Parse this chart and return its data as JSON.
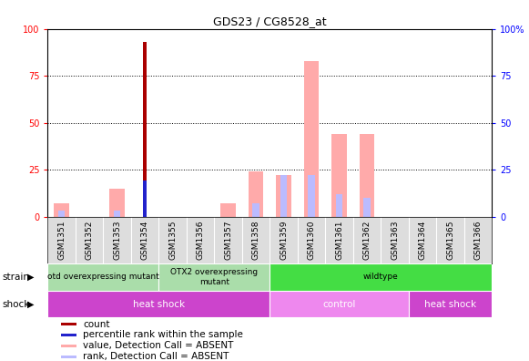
{
  "title": "GDS23 / CG8528_at",
  "samples": [
    "GSM1351",
    "GSM1352",
    "GSM1353",
    "GSM1354",
    "GSM1355",
    "GSM1356",
    "GSM1357",
    "GSM1358",
    "GSM1359",
    "GSM1360",
    "GSM1361",
    "GSM1362",
    "GSM1363",
    "GSM1364",
    "GSM1365",
    "GSM1366"
  ],
  "count_values": [
    0,
    0,
    0,
    93,
    0,
    0,
    0,
    0,
    0,
    0,
    0,
    0,
    0,
    0,
    0,
    0
  ],
  "percentile_values": [
    0,
    0,
    0,
    19,
    0,
    0,
    0,
    0,
    0,
    0,
    0,
    0,
    0,
    0,
    0,
    0
  ],
  "absent_value_vals": [
    7,
    0,
    15,
    0,
    0,
    0,
    7,
    24,
    22,
    83,
    44,
    44,
    0,
    0,
    0,
    0
  ],
  "absent_rank_vals": [
    3,
    0,
    3,
    0,
    0,
    0,
    0,
    7,
    22,
    22,
    12,
    10,
    0,
    0,
    0,
    0
  ],
  "strain_data": [
    {
      "label": "otd overexpressing mutant",
      "start": 0,
      "end": 4,
      "color": "#aaddaa"
    },
    {
      "label": "OTX2 overexpressing\nmutant",
      "start": 4,
      "end": 8,
      "color": "#aaddaa"
    },
    {
      "label": "wildtype",
      "start": 8,
      "end": 16,
      "color": "#44dd44"
    }
  ],
  "shock_data": [
    {
      "label": "heat shock",
      "start": 0,
      "end": 8,
      "color": "#cc44cc"
    },
    {
      "label": "control",
      "start": 8,
      "end": 13,
      "color": "#ee88ee"
    },
    {
      "label": "heat shock",
      "start": 13,
      "end": 16,
      "color": "#cc44cc"
    }
  ],
  "ylim": [
    0,
    100
  ],
  "count_color": "#aa0000",
  "percentile_color": "#2222cc",
  "absent_value_color": "#ffaaaa",
  "absent_rank_color": "#bbbbff",
  "legend_items": [
    {
      "label": "count",
      "color": "#aa0000"
    },
    {
      "label": "percentile rank within the sample",
      "color": "#2222cc"
    },
    {
      "label": "value, Detection Call = ABSENT",
      "color": "#ffaaaa"
    },
    {
      "label": "rank, Detection Call = ABSENT",
      "color": "#bbbbff"
    }
  ]
}
